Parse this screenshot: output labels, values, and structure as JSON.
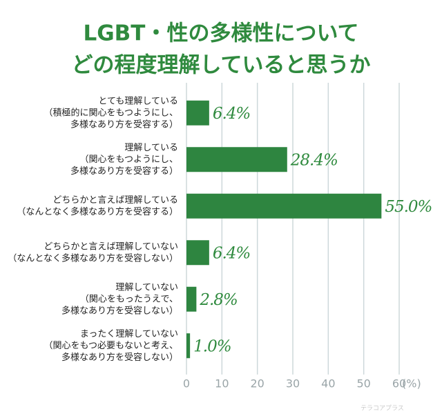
{
  "chart_data": {
    "type": "barh",
    "title": [
      "LGBT・性の多様性について",
      "どの程度理解していると思うか"
    ],
    "categories": [
      [
        "とても理解している",
        "（積極的に関心をもつようにし、",
        "多様なあり方を受容する）"
      ],
      [
        "理解している",
        "（関心をもつようにし、",
        "多様なあり方を受容する）"
      ],
      [
        "どちらかと言えば理解している",
        "（なんとなく多様なあり方を受容する）"
      ],
      [
        "どちらかと言えば理解していない",
        "（なんとなく多様なあり方を受容しない）"
      ],
      [
        "理解していない",
        "（関心をもったうえで、",
        "多様なあり方を受容しない）"
      ],
      [
        "まったく理解していない",
        "（関心をもつ必要もないと考え、",
        "多様なあり方を受容しない）"
      ]
    ],
    "values": [
      6.4,
      28.4,
      55.0,
      6.4,
      2.8,
      1.0
    ],
    "value_labels": [
      "6.4%",
      "28.4%",
      "55.0%",
      "6.4%",
      "2.8%",
      "1.0%"
    ],
    "color": "#2e8540",
    "xlim": [
      0,
      60
    ],
    "xticks": [
      0,
      10,
      20,
      30,
      40,
      50,
      60
    ],
    "x_unit": "(%)",
    "grid": true,
    "watermark": "テラコアプラス"
  }
}
